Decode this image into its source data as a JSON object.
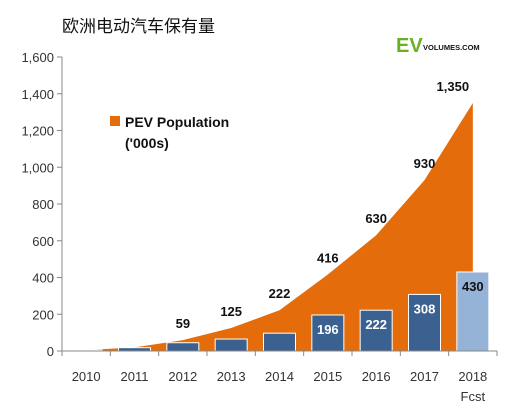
{
  "chart_data": {
    "type": "bar+area",
    "title": "欧洲电动汽车保有量",
    "brand": {
      "ev": "EV",
      "rest": "VOLUMES.COM"
    },
    "categories": [
      "2010",
      "2011",
      "2012",
      "2013",
      "2014",
      "2015",
      "2016",
      "2017",
      "2018"
    ],
    "category_sublabels": [
      "",
      "",
      "",
      "",
      "",
      "",
      "",
      "",
      "Fcst"
    ],
    "ylim": [
      0,
      1600
    ],
    "yticks": [
      0,
      200,
      400,
      600,
      800,
      1000,
      1200,
      1400,
      1600
    ],
    "ytick_labels": [
      "0",
      "200",
      "400",
      "600",
      "800",
      "1,000",
      "1,200",
      "1,400",
      "1,600"
    ],
    "grid": false,
    "area_series": {
      "name": "PEV Population",
      "name_sub": "('000s)",
      "values": [
        5,
        20,
        59,
        125,
        222,
        416,
        630,
        930,
        1350
      ],
      "labels": [
        "",
        "",
        "59",
        "125",
        "222",
        "416",
        "630",
        "930",
        "1,350"
      ],
      "color": "#e46c0a"
    },
    "bar_series": {
      "values": [
        5,
        18,
        45,
        65,
        97,
        196,
        222,
        308,
        430
      ],
      "labels": [
        "",
        "",
        "",
        "",
        "",
        "196",
        "222",
        "308",
        "430"
      ],
      "color": "#3a6190",
      "forecast_color": "#95b3d7"
    },
    "legend_position": "top-left"
  }
}
